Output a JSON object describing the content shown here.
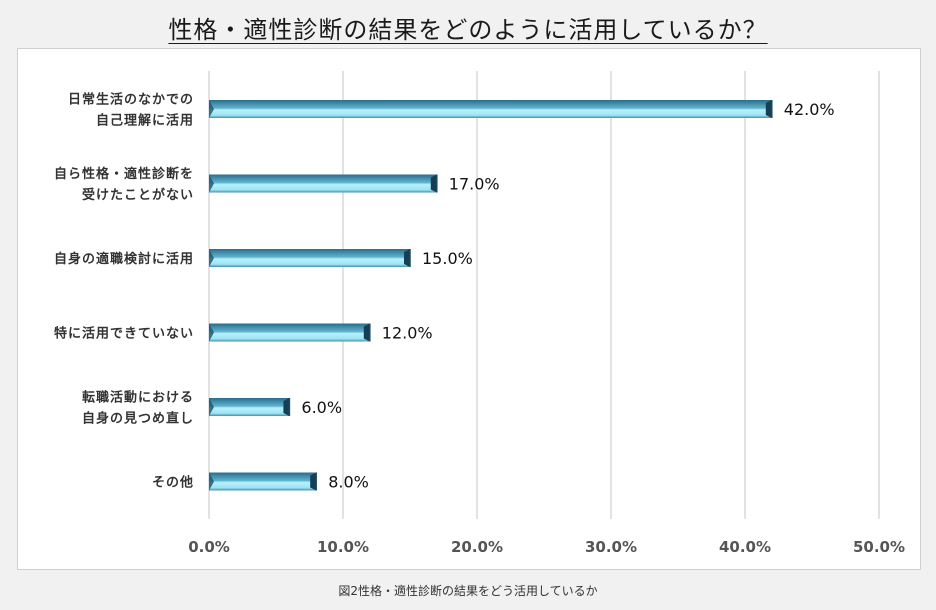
{
  "title": "性格・適性診断の結果をどのように活用しているか？",
  "caption": "図2性格・適性診断の結果をどう活用しているか",
  "colors": {
    "bar_light": "#aeeefa",
    "bar_mid": "#6fc2da",
    "bar_dark": "#2c6f8e",
    "bar_edge": "#1d4a60",
    "grid": "#d9d9d9"
  },
  "chart_data": {
    "type": "bar",
    "orientation": "horizontal",
    "categories": [
      [
        "日常生活のなかでの",
        "自己理解に活用"
      ],
      [
        "自ら性格・適性診断を",
        "受けたことがない"
      ],
      [
        "自身の適職検討に活用"
      ],
      [
        "特に活用できていない"
      ],
      [
        "転職活動における",
        "自身の見つめ直し"
      ],
      [
        "その他"
      ]
    ],
    "values": [
      42.0,
      17.0,
      15.0,
      12.0,
      6.0,
      8.0
    ],
    "value_labels": [
      "42.0%",
      "17.0%",
      "15.0%",
      "12.0%",
      "6.0%",
      "8.0%"
    ],
    "xlim": [
      0,
      50
    ],
    "xticks": [
      "0.0%",
      "10.0%",
      "20.0%",
      "30.0%",
      "40.0%",
      "50.0%"
    ],
    "grid": true
  }
}
